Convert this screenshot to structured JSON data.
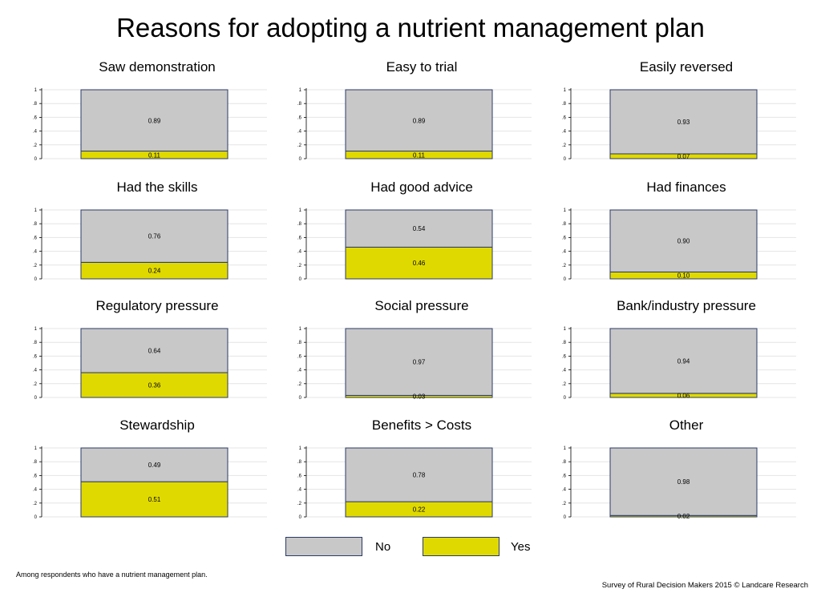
{
  "title": "Reasons for adopting a nutrient management plan",
  "footnote": "Among respondents who have a nutrient management plan.",
  "source": "Survey of Rural Decision Makers 2015 © Landcare Research",
  "colors": {
    "no": "#c8c8c8",
    "yes": "#e0d900",
    "outline": "#2b3a67",
    "grid": "#e4e4e4"
  },
  "legend": {
    "no": "No",
    "yes": "Yes"
  },
  "chart_data": {
    "type": "bar",
    "stacked": true,
    "ylim": [
      0,
      1
    ],
    "yticks": [
      "0",
      ".2",
      ".4",
      ".6",
      ".8",
      "1"
    ],
    "series_names": [
      "No",
      "Yes"
    ],
    "panels": [
      {
        "title": "Saw demonstration",
        "no": 0.89,
        "yes": 0.11,
        "no_label": "0.89",
        "yes_label": "0.11"
      },
      {
        "title": "Easy to trial",
        "no": 0.89,
        "yes": 0.11,
        "no_label": "0.89",
        "yes_label": "0.11"
      },
      {
        "title": "Easily reversed",
        "no": 0.93,
        "yes": 0.07,
        "no_label": "0.93",
        "yes_label": "0.07"
      },
      {
        "title": "Had the skills",
        "no": 0.76,
        "yes": 0.24,
        "no_label": "0.76",
        "yes_label": "0.24"
      },
      {
        "title": "Had good advice",
        "no": 0.54,
        "yes": 0.46,
        "no_label": "0.54",
        "yes_label": "0.46"
      },
      {
        "title": "Had finances",
        "no": 0.9,
        "yes": 0.1,
        "no_label": "0.90",
        "yes_label": "0.10"
      },
      {
        "title": "Regulatory pressure",
        "no": 0.64,
        "yes": 0.36,
        "no_label": "0.64",
        "yes_label": "0.36"
      },
      {
        "title": "Social pressure",
        "no": 0.97,
        "yes": 0.03,
        "no_label": "0.97",
        "yes_label": "0.03"
      },
      {
        "title": "Bank/industry pressure",
        "no": 0.94,
        "yes": 0.06,
        "no_label": "0.94",
        "yes_label": "0.06"
      },
      {
        "title": "Stewardship",
        "no": 0.49,
        "yes": 0.51,
        "no_label": "0.49",
        "yes_label": "0.51"
      },
      {
        "title": "Benefits > Costs",
        "no": 0.78,
        "yes": 0.22,
        "no_label": "0.78",
        "yes_label": "0.22"
      },
      {
        "title": "Other",
        "no": 0.98,
        "yes": 0.02,
        "no_label": "0.98",
        "yes_label": "0.02"
      }
    ]
  }
}
